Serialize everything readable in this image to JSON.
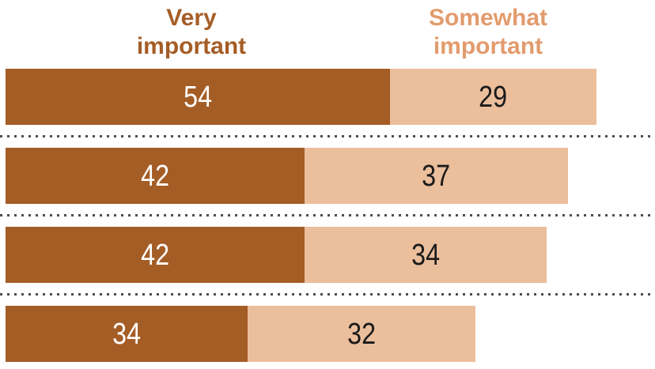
{
  "chart_data": {
    "type": "bar",
    "orientation": "horizontal",
    "stacked": true,
    "units": "percent",
    "legend_position": "top",
    "grid": false,
    "rows": 4,
    "categories": [
      "",
      "",
      "",
      ""
    ],
    "series": [
      {
        "name": "Very important",
        "header_label": "Very\nimportant",
        "fill_color": "#A55D26",
        "value_text_color": "#ffffff",
        "header_text_color": "#A55D26",
        "values": [
          54,
          42,
          42,
          34
        ]
      },
      {
        "name": "Somewhat important",
        "header_label": "Somewhat\nimportant",
        "fill_color": "#EBBE9C",
        "value_text_color": "#1a1a1a",
        "header_text_color": "#E39B6D",
        "values": [
          29,
          37,
          34,
          32
        ]
      }
    ],
    "separator_style": "dotted",
    "separator_color": "#4d4d4d",
    "background_color": "#ffffff"
  }
}
